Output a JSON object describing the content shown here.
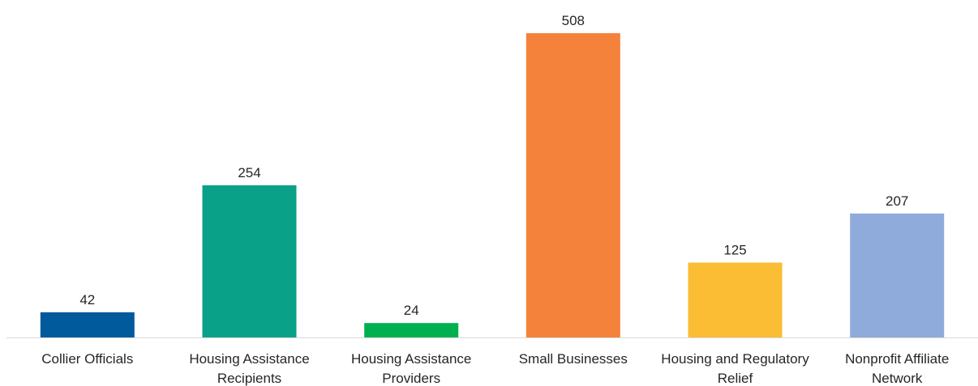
{
  "chart_data": {
    "type": "bar",
    "title": "",
    "xlabel": "",
    "ylabel": "",
    "grid": false,
    "legend": "none",
    "ylim": [
      0,
      508
    ],
    "categories": [
      [
        "Collier Officials"
      ],
      [
        "Housing Assistance",
        "Recipients"
      ],
      [
        "Housing Assistance",
        "Providers"
      ],
      [
        "Small Businesses"
      ],
      [
        "Housing and Regulatory",
        "Relief"
      ],
      [
        "Nonprofit Affiliate",
        "Network"
      ]
    ],
    "values": [
      42,
      254,
      24,
      508,
      125,
      207
    ],
    "value_labels": [
      "42",
      "254",
      "24",
      "508",
      "125",
      "207"
    ],
    "colors": [
      "#005A9C",
      "#0AA189",
      "#00B050",
      "#F5823A",
      "#FBBD33",
      "#8FABDC"
    ],
    "axis_color": "#D9D9D9"
  }
}
